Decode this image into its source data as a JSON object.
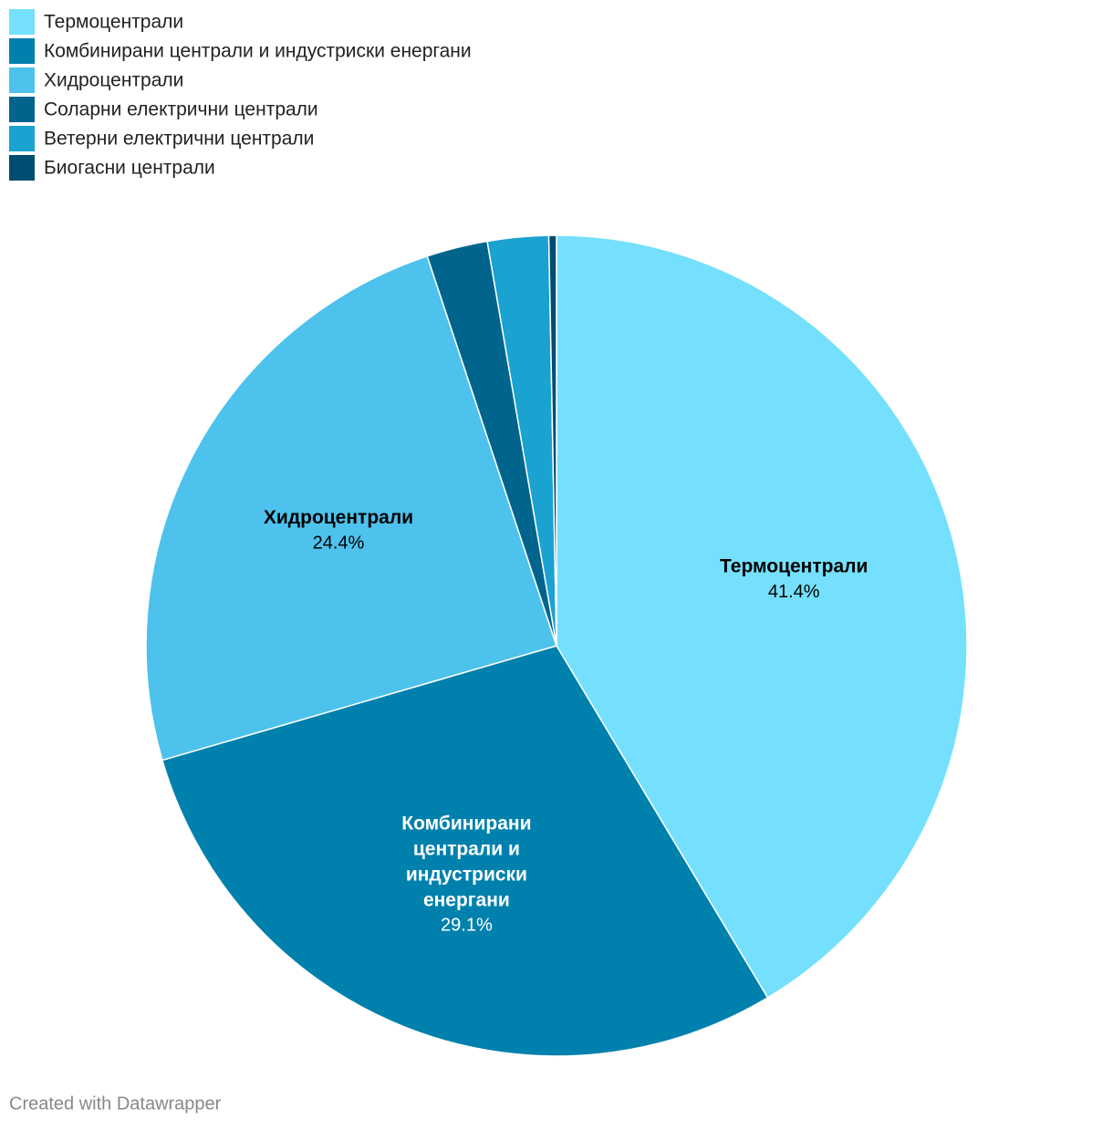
{
  "chart_data": {
    "type": "pie",
    "categories": [
      "Термоцентрали",
      "Комбинирани централи и индустриски енергани",
      "Хидроцентрали",
      "Соларни електрични централи",
      "Ветерни електрични централи",
      "Биогасни централи"
    ],
    "values": [
      41.4,
      29.1,
      24.4,
      2.4,
      2.4,
      0.3
    ],
    "value_labels": [
      "41.4%",
      "29.1%",
      "24.4%",
      null,
      null,
      null
    ],
    "colors": [
      "#74e0fd",
      "#0081ad",
      "#4dc2ec",
      "#00648d",
      "#1aa2d1",
      "#004d72"
    ],
    "legend": "top-left"
  },
  "footer": "Created with Datawrapper"
}
